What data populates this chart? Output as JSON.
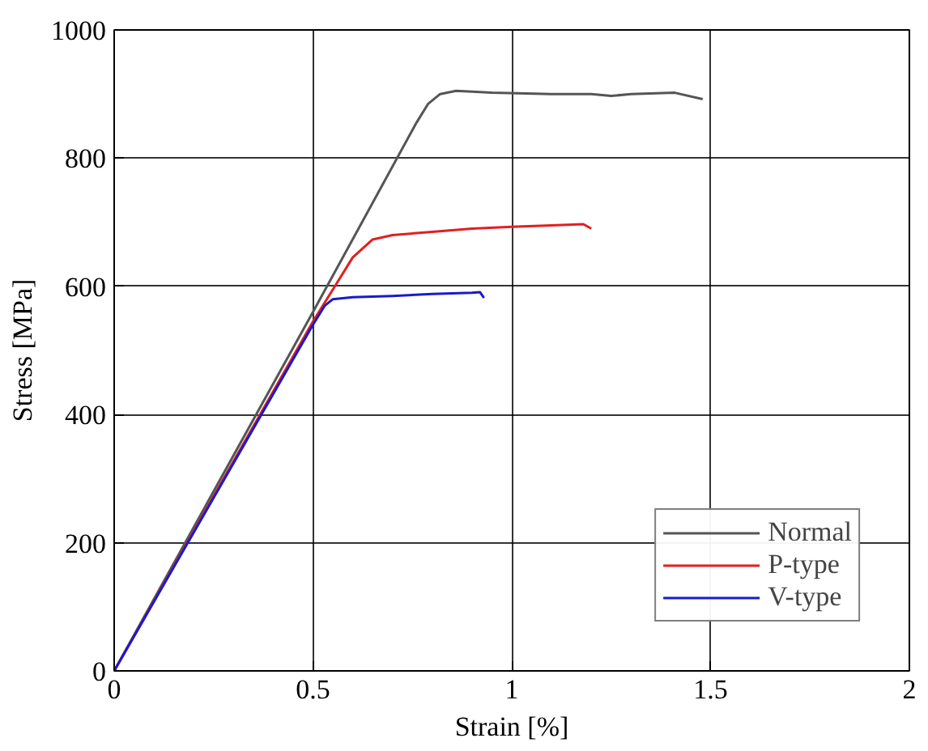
{
  "chart_data": {
    "type": "line",
    "xlabel": "Strain [%]",
    "ylabel": "Stress [MPa]",
    "xlim": [
      0,
      2
    ],
    "ylim": [
      0,
      1000
    ],
    "xticks": [
      0,
      0.5,
      1,
      1.5,
      2
    ],
    "yticks": [
      0,
      200,
      400,
      600,
      800,
      1000
    ],
    "grid": true,
    "legend": "bottom right",
    "line_style": "solid",
    "series": [
      {
        "name": "Normal",
        "color": "#555555",
        "x": [
          0,
          0.5,
          0.76,
          0.79,
          0.82,
          0.86,
          0.95,
          1.1,
          1.2,
          1.25,
          1.3,
          1.41,
          1.48
        ],
        "values": [
          0,
          560,
          855,
          885,
          900,
          905,
          902,
          900,
          900,
          897,
          900,
          902,
          892
        ]
      },
      {
        "name": "P-type",
        "color": "#e02020",
        "x": [
          0,
          0.5,
          0.55,
          0.6,
          0.65,
          0.7,
          0.8,
          0.9,
          1.0,
          1.1,
          1.18,
          1.2
        ],
        "values": [
          0,
          545,
          595,
          645,
          673,
          680,
          685,
          690,
          693,
          695,
          697,
          690
        ]
      },
      {
        "name": "V-type",
        "color": "#1a1acc",
        "x": [
          0,
          0.5,
          0.53,
          0.55,
          0.6,
          0.7,
          0.8,
          0.9,
          0.92,
          0.93
        ],
        "values": [
          0,
          540,
          570,
          580,
          583,
          585,
          588,
          590,
          591,
          582
        ]
      }
    ]
  }
}
